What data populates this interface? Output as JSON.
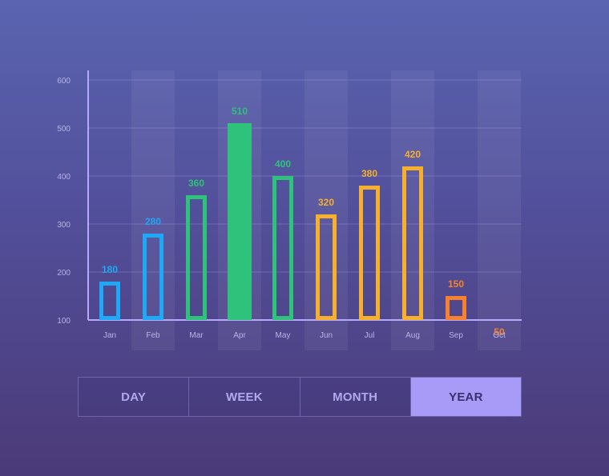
{
  "chart_data": {
    "type": "bar",
    "categories": [
      "Jan",
      "Feb",
      "Mar",
      "Apr",
      "May",
      "Jun",
      "Jul",
      "Aug",
      "Sep",
      "Oct"
    ],
    "values": [
      180,
      280,
      360,
      510,
      400,
      320,
      380,
      420,
      150,
      50
    ],
    "value_labels": [
      "180",
      "280",
      "360",
      "510",
      "400",
      "320",
      "380",
      "420",
      "150",
      "50"
    ],
    "colors": [
      "#1fa8f5",
      "#1fa8f5",
      "#2fc27a",
      "#2fc27a",
      "#2fc27a",
      "#f7b02c",
      "#f7b02c",
      "#f7b02c",
      "#f7812c",
      "#f7812c"
    ],
    "filled": [
      false,
      false,
      false,
      true,
      false,
      false,
      false,
      false,
      false,
      false
    ],
    "highlighted_columns": [
      1,
      3,
      5,
      7,
      9
    ],
    "yticks": [
      100,
      200,
      300,
      400,
      500,
      600
    ],
    "ylim": [
      100,
      600
    ],
    "grid": true,
    "title": "",
    "xlabel": "",
    "ylabel": ""
  },
  "range_tabs": {
    "items": [
      {
        "label": "DAY"
      },
      {
        "label": "WEEK"
      },
      {
        "label": "MONTH"
      },
      {
        "label": "YEAR"
      }
    ],
    "active": "YEAR"
  }
}
